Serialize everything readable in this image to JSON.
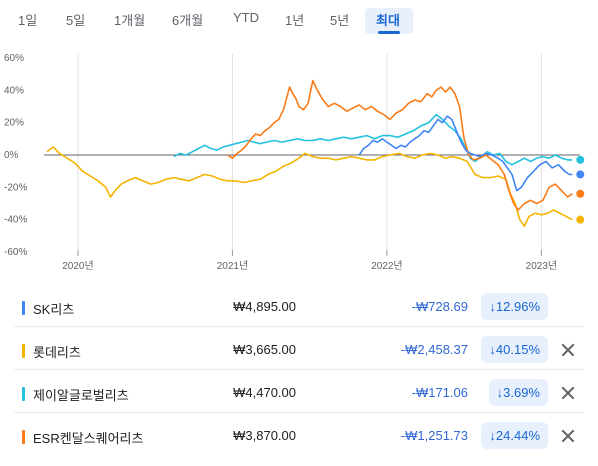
{
  "range_tabs": {
    "items": [
      {
        "label": "1일"
      },
      {
        "label": "5일"
      },
      {
        "label": "1개월"
      },
      {
        "label": "6개월"
      },
      {
        "label": "YTD"
      },
      {
        "label": "1년"
      },
      {
        "label": "5년"
      },
      {
        "label": "최대"
      }
    ],
    "active_label": "최대"
  },
  "chart_data": {
    "type": "line",
    "ylim": [
      -60,
      60
    ],
    "y_ticks": [
      "60%",
      "40%",
      "20%",
      "0%",
      "-20%",
      "-40%",
      "-60%"
    ],
    "y_tick_values": [
      60,
      40,
      20,
      0,
      -20,
      -40,
      -60
    ],
    "x_ticks": [
      "2020년",
      "2021년",
      "2022년",
      "2023년"
    ],
    "x_tick_values": [
      2020.0,
      2021.0,
      2022.0,
      2023.0
    ],
    "xlim": [
      2019.78,
      2023.25
    ],
    "grid": "vertical",
    "series": [
      {
        "name": "롯데리츠",
        "color": "#f4b400",
        "points": [
          [
            2019.8,
            2
          ],
          [
            2019.84,
            5
          ],
          [
            2019.88,
            1
          ],
          [
            2019.93,
            -2
          ],
          [
            2019.98,
            -5
          ],
          [
            2020.03,
            -10
          ],
          [
            2020.08,
            -13
          ],
          [
            2020.13,
            -16
          ],
          [
            2020.18,
            -20
          ],
          [
            2020.21,
            -26
          ],
          [
            2020.24,
            -22
          ],
          [
            2020.28,
            -18
          ],
          [
            2020.32,
            -16
          ],
          [
            2020.37,
            -14
          ],
          [
            2020.42,
            -16
          ],
          [
            2020.47,
            -18
          ],
          [
            2020.52,
            -17
          ],
          [
            2020.57,
            -15
          ],
          [
            2020.62,
            -14
          ],
          [
            2020.67,
            -15
          ],
          [
            2020.72,
            -16
          ],
          [
            2020.77,
            -14
          ],
          [
            2020.82,
            -12
          ],
          [
            2020.87,
            -13
          ],
          [
            2020.92,
            -15
          ],
          [
            2020.97,
            -16
          ],
          [
            2021.02,
            -16
          ],
          [
            2021.08,
            -17
          ],
          [
            2021.12,
            -16
          ],
          [
            2021.18,
            -15
          ],
          [
            2021.23,
            -12
          ],
          [
            2021.28,
            -10
          ],
          [
            2021.33,
            -7
          ],
          [
            2021.38,
            -5
          ],
          [
            2021.43,
            -2
          ],
          [
            2021.47,
            1
          ],
          [
            2021.52,
            -1
          ],
          [
            2021.57,
            -2
          ],
          [
            2021.62,
            -2
          ],
          [
            2021.67,
            -3
          ],
          [
            2021.72,
            -2
          ],
          [
            2021.77,
            -1
          ],
          [
            2021.82,
            -2
          ],
          [
            2021.87,
            -3
          ],
          [
            2021.92,
            -3
          ],
          [
            2021.97,
            -1
          ],
          [
            2022.02,
            0
          ],
          [
            2022.08,
            1
          ],
          [
            2022.13,
            -1
          ],
          [
            2022.18,
            -2
          ],
          [
            2022.23,
            0
          ],
          [
            2022.28,
            1
          ],
          [
            2022.33,
            0
          ],
          [
            2022.38,
            -2
          ],
          [
            2022.42,
            -1
          ],
          [
            2022.47,
            -2
          ],
          [
            2022.52,
            -4
          ],
          [
            2022.57,
            -12
          ],
          [
            2022.62,
            -14
          ],
          [
            2022.67,
            -14
          ],
          [
            2022.72,
            -13
          ],
          [
            2022.77,
            -15
          ],
          [
            2022.8,
            -24
          ],
          [
            2022.83,
            -30
          ],
          [
            2022.86,
            -40
          ],
          [
            2022.89,
            -44
          ],
          [
            2022.92,
            -38
          ],
          [
            2022.96,
            -36
          ],
          [
            2023.0,
            -37
          ],
          [
            2023.04,
            -36
          ],
          [
            2023.08,
            -34
          ],
          [
            2023.12,
            -36
          ],
          [
            2023.16,
            -38
          ],
          [
            2023.2,
            -40
          ]
        ]
      },
      {
        "name": "제이알글로벌리츠",
        "color": "#24c1e0",
        "points": [
          [
            2020.62,
            -1
          ],
          [
            2020.66,
            1
          ],
          [
            2020.7,
            0
          ],
          [
            2020.74,
            2
          ],
          [
            2020.78,
            4
          ],
          [
            2020.82,
            6
          ],
          [
            2020.86,
            4
          ],
          [
            2020.9,
            3
          ],
          [
            2020.94,
            5
          ],
          [
            2020.98,
            6
          ],
          [
            2021.02,
            7
          ],
          [
            2021.06,
            8
          ],
          [
            2021.1,
            9
          ],
          [
            2021.14,
            8
          ],
          [
            2021.18,
            7
          ],
          [
            2021.22,
            8
          ],
          [
            2021.27,
            9
          ],
          [
            2021.32,
            8
          ],
          [
            2021.37,
            9
          ],
          [
            2021.42,
            10
          ],
          [
            2021.47,
            9
          ],
          [
            2021.52,
            9
          ],
          [
            2021.57,
            10
          ],
          [
            2021.62,
            9
          ],
          [
            2021.67,
            10
          ],
          [
            2021.72,
            11
          ],
          [
            2021.77,
            10
          ],
          [
            2021.82,
            11
          ],
          [
            2021.87,
            12
          ],
          [
            2021.92,
            10
          ],
          [
            2021.97,
            12
          ],
          [
            2022.02,
            12
          ],
          [
            2022.07,
            11
          ],
          [
            2022.12,
            13
          ],
          [
            2022.17,
            15
          ],
          [
            2022.22,
            18
          ],
          [
            2022.27,
            20
          ],
          [
            2022.32,
            25
          ],
          [
            2022.36,
            22
          ],
          [
            2022.4,
            18
          ],
          [
            2022.44,
            15
          ],
          [
            2022.48,
            10
          ],
          [
            2022.51,
            4
          ],
          [
            2022.54,
            -2
          ],
          [
            2022.57,
            -4
          ],
          [
            2022.61,
            -1
          ],
          [
            2022.65,
            2
          ],
          [
            2022.69,
            0
          ],
          [
            2022.73,
            1
          ],
          [
            2022.77,
            -4
          ],
          [
            2022.81,
            -6
          ],
          [
            2022.85,
            -4
          ],
          [
            2022.89,
            -2
          ],
          [
            2022.93,
            -4
          ],
          [
            2022.97,
            -2
          ],
          [
            2023.01,
            -1
          ],
          [
            2023.05,
            -2
          ],
          [
            2023.09,
            0
          ],
          [
            2023.13,
            -2
          ],
          [
            2023.17,
            -3
          ],
          [
            2023.2,
            -3
          ]
        ]
      },
      {
        "name": "ESR켄달스퀘어리츠",
        "color": "#fa7b17",
        "points": [
          [
            2020.97,
            0
          ],
          [
            2021.0,
            -2
          ],
          [
            2021.03,
            1
          ],
          [
            2021.06,
            3
          ],
          [
            2021.09,
            6
          ],
          [
            2021.12,
            10
          ],
          [
            2021.15,
            13
          ],
          [
            2021.18,
            12
          ],
          [
            2021.21,
            15
          ],
          [
            2021.24,
            17
          ],
          [
            2021.27,
            20
          ],
          [
            2021.3,
            22
          ],
          [
            2021.33,
            28
          ],
          [
            2021.35,
            35
          ],
          [
            2021.37,
            42
          ],
          [
            2021.39,
            38
          ],
          [
            2021.41,
            35
          ],
          [
            2021.43,
            30
          ],
          [
            2021.46,
            28
          ],
          [
            2021.49,
            32
          ],
          [
            2021.52,
            46
          ],
          [
            2021.55,
            40
          ],
          [
            2021.58,
            35
          ],
          [
            2021.62,
            30
          ],
          [
            2021.66,
            32
          ],
          [
            2021.7,
            30
          ],
          [
            2021.74,
            27
          ],
          [
            2021.78,
            29
          ],
          [
            2021.82,
            31
          ],
          [
            2021.86,
            28
          ],
          [
            2021.9,
            30
          ],
          [
            2021.94,
            27
          ],
          [
            2021.98,
            25
          ],
          [
            2022.02,
            22
          ],
          [
            2022.06,
            26
          ],
          [
            2022.1,
            28
          ],
          [
            2022.14,
            32
          ],
          [
            2022.18,
            34
          ],
          [
            2022.22,
            33
          ],
          [
            2022.26,
            38
          ],
          [
            2022.29,
            36
          ],
          [
            2022.32,
            40
          ],
          [
            2022.35,
            42
          ],
          [
            2022.38,
            39
          ],
          [
            2022.41,
            42
          ],
          [
            2022.44,
            38
          ],
          [
            2022.47,
            30
          ],
          [
            2022.5,
            10
          ],
          [
            2022.53,
            0
          ],
          [
            2022.56,
            -3
          ],
          [
            2022.6,
            -2
          ],
          [
            2022.64,
            0
          ],
          [
            2022.68,
            -3
          ],
          [
            2022.72,
            -6
          ],
          [
            2022.76,
            -12
          ],
          [
            2022.79,
            -22
          ],
          [
            2022.82,
            -30
          ],
          [
            2022.85,
            -34
          ],
          [
            2022.89,
            -30
          ],
          [
            2022.93,
            -28
          ],
          [
            2022.97,
            -30
          ],
          [
            2023.01,
            -28
          ],
          [
            2023.05,
            -20
          ],
          [
            2023.09,
            -18
          ],
          [
            2023.13,
            -22
          ],
          [
            2023.17,
            -26
          ],
          [
            2023.2,
            -24
          ]
        ]
      },
      {
        "name": "SK리츠",
        "color": "#4285f4",
        "points": [
          [
            2021.82,
            0
          ],
          [
            2021.85,
            4
          ],
          [
            2021.88,
            6
          ],
          [
            2021.91,
            9
          ],
          [
            2021.94,
            8
          ],
          [
            2021.97,
            10
          ],
          [
            2022.0,
            8
          ],
          [
            2022.03,
            6
          ],
          [
            2022.06,
            4
          ],
          [
            2022.09,
            6
          ],
          [
            2022.12,
            5
          ],
          [
            2022.15,
            8
          ],
          [
            2022.18,
            10
          ],
          [
            2022.21,
            12
          ],
          [
            2022.24,
            15
          ],
          [
            2022.27,
            14
          ],
          [
            2022.3,
            18
          ],
          [
            2022.33,
            22
          ],
          [
            2022.36,
            20
          ],
          [
            2022.39,
            24
          ],
          [
            2022.42,
            22
          ],
          [
            2022.45,
            15
          ],
          [
            2022.48,
            8
          ],
          [
            2022.51,
            3
          ],
          [
            2022.54,
            1
          ],
          [
            2022.57,
            0
          ],
          [
            2022.6,
            -1
          ],
          [
            2022.64,
            1
          ],
          [
            2022.68,
            0
          ],
          [
            2022.72,
            -2
          ],
          [
            2022.75,
            -4
          ],
          [
            2022.78,
            -8
          ],
          [
            2022.81,
            -12
          ],
          [
            2022.84,
            -22
          ],
          [
            2022.87,
            -20
          ],
          [
            2022.91,
            -14
          ],
          [
            2022.95,
            -10
          ],
          [
            2022.99,
            -6
          ],
          [
            2023.03,
            -4
          ],
          [
            2023.07,
            -8
          ],
          [
            2023.11,
            -6
          ],
          [
            2023.15,
            -10
          ],
          [
            2023.18,
            -12
          ],
          [
            2023.2,
            -12
          ]
        ]
      }
    ]
  },
  "rows": [
    {
      "name": "SK리츠",
      "color": "#4285f4",
      "price": "₩4,895.00",
      "change": "-₩728.69",
      "pct": "↓12.96%",
      "removable": false
    },
    {
      "name": "롯데리츠",
      "color": "#f4b400",
      "price": "₩3,665.00",
      "change": "-₩2,458.37",
      "pct": "↓40.15%",
      "removable": true
    },
    {
      "name": "제이알글로벌리츠",
      "color": "#24c1e0",
      "price": "₩4,470.00",
      "change": "-₩171.06",
      "pct": "↓3.69%",
      "removable": true
    },
    {
      "name": "ESR켄달스퀘어리츠",
      "color": "#fa7b17",
      "price": "₩3,870.00",
      "change": "-₩1,251.73",
      "pct": "↓24.44%",
      "removable": true
    }
  ]
}
